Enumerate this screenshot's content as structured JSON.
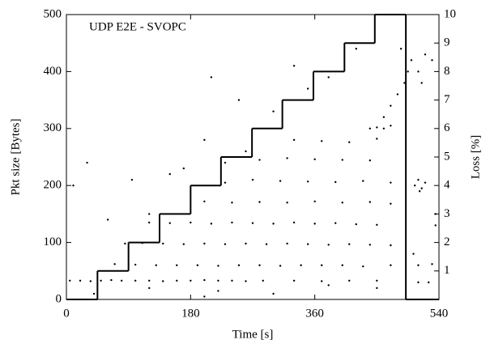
{
  "chart_data": {
    "type": "scatter",
    "title": "UDP E2E - SVOPC",
    "x_label": "Time [s]",
    "y_label": "Pkt size [Bytes]",
    "y2_label": "Loss [%]",
    "xlim": [
      0,
      540
    ],
    "xticks": [
      0,
      180,
      360,
      540
    ],
    "ylim": [
      0,
      500
    ],
    "yticks": [
      0,
      100,
      200,
      300,
      400,
      500
    ],
    "y2lim": [
      0,
      10
    ],
    "y2ticks": [
      1,
      2,
      3,
      4,
      5,
      6,
      7,
      8,
      9,
      10
    ],
    "series": [
      {
        "color": "#000000",
        "x": [
          5,
          20,
          35,
          50,
          65,
          80,
          100,
          120,
          140,
          160,
          180,
          200,
          220,
          240,
          260,
          285,
          330,
          370,
          410,
          450,
          70,
          100,
          130,
          160,
          190,
          220,
          250,
          280,
          310,
          340,
          370,
          400,
          430,
          470,
          510,
          530,
          85,
          110,
          140,
          170,
          200,
          230,
          260,
          290,
          320,
          350,
          380,
          410,
          440,
          470,
          120,
          150,
          180,
          210,
          240,
          270,
          300,
          330,
          360,
          390,
          420,
          450,
          200,
          240,
          280,
          320,
          360,
          400,
          440,
          470,
          230,
          270,
          310,
          350,
          390,
          430,
          470,
          280,
          320,
          360,
          400,
          440,
          330,
          370,
          410,
          450,
          440,
          450,
          460,
          470,
          460,
          470,
          480,
          485,
          490,
          495,
          500,
          510,
          515,
          520,
          530,
          10,
          30,
          60,
          95,
          120,
          150,
          170,
          200,
          210,
          230,
          250,
          260,
          300,
          330,
          350,
          380,
          420,
          503,
          505,
          510,
          512,
          515,
          520,
          535,
          535,
          510,
          525,
          40,
          120,
          200,
          220,
          300,
          380,
          450
        ],
        "values": [
          33,
          33,
          32,
          33,
          34,
          33,
          33,
          33,
          32,
          33,
          33,
          34,
          33,
          33,
          32,
          33,
          33,
          32,
          33,
          33,
          62,
          61,
          60,
          60,
          60,
          59,
          60,
          60,
          59,
          60,
          60,
          60,
          58,
          60,
          60,
          62,
          98,
          99,
          98,
          97,
          98,
          97,
          98,
          97,
          98,
          97,
          96,
          97,
          96,
          95,
          135,
          134,
          135,
          133,
          135,
          134,
          133,
          135,
          133,
          134,
          132,
          131,
          172,
          170,
          171,
          170,
          172,
          170,
          171,
          168,
          205,
          210,
          208,
          207,
          206,
          208,
          205,
          245,
          248,
          246,
          245,
          244,
          280,
          278,
          276,
          282,
          300,
          302,
          300,
          305,
          320,
          340,
          360,
          440,
          380,
          400,
          420,
          400,
          380,
          430,
          420,
          200,
          240,
          140,
          210,
          150,
          220,
          230,
          280,
          390,
          240,
          350,
          260,
          330,
          410,
          370,
          390,
          440,
          80,
          200,
          210,
          190,
          195,
          205,
          130,
          150,
          30,
          30,
          10,
          20,
          5,
          15,
          10,
          25,
          20
        ]
      },
      {
        "color": "#000000",
        "axis": "y2",
        "step": true,
        "x": [
          0,
          45,
          90,
          135,
          180,
          224,
          269,
          313,
          358,
          403,
          447,
          492
        ],
        "values": [
          0,
          1,
          2,
          3,
          4,
          5,
          6,
          7,
          8,
          9,
          10,
          0
        ]
      }
    ]
  }
}
